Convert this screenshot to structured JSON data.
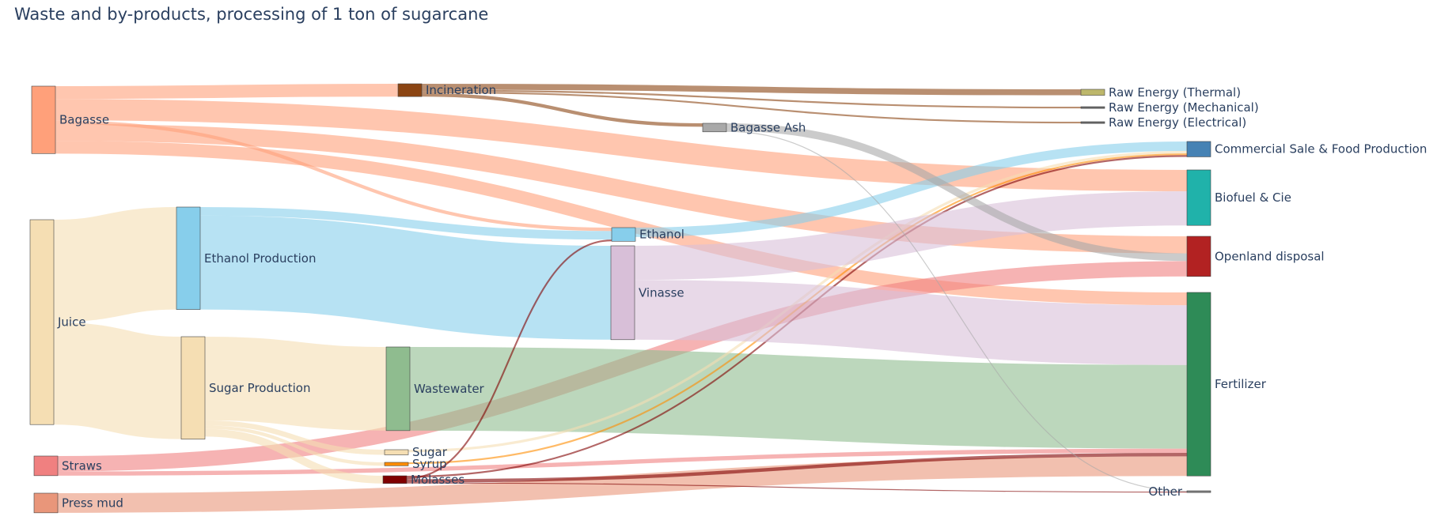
{
  "chart_data": {
    "type": "sankey",
    "title": "Waste and by-products, processing of 1 ton of sugarcane",
    "nodes": [
      {
        "id": "bagasse",
        "label": "Bagasse",
        "color": "#FFA07A"
      },
      {
        "id": "juice",
        "label": "Juice",
        "color": "#F5DEB3"
      },
      {
        "id": "straws",
        "label": "Straws",
        "color": "#F08080"
      },
      {
        "id": "pressmud",
        "label": "Press mud",
        "color": "#E9967A"
      },
      {
        "id": "ethprod",
        "label": "Ethanol Production",
        "color": "#87CEEB"
      },
      {
        "id": "sugprod",
        "label": "Sugar Production",
        "color": "#F5DEB3"
      },
      {
        "id": "incin",
        "label": "Incineration",
        "color": "#8B4513"
      },
      {
        "id": "wastewater",
        "label": "Wastewater",
        "color": "#8FBC8F"
      },
      {
        "id": "sugar",
        "label": "Sugar",
        "color": "#F5DEB3"
      },
      {
        "id": "syrup",
        "label": "Syrup",
        "color": "#FF8C00"
      },
      {
        "id": "molasses",
        "label": "Molasses",
        "color": "#800000"
      },
      {
        "id": "ethanol",
        "label": "Ethanol",
        "color": "#87CEEB"
      },
      {
        "id": "vinasse",
        "label": "Vinasse",
        "color": "#D8BFD8"
      },
      {
        "id": "ash",
        "label": "Bagasse Ash",
        "color": "#A9A9A9"
      },
      {
        "id": "rthermal",
        "label": "Raw Energy (Thermal)",
        "color": "#BDB76B"
      },
      {
        "id": "rmech",
        "label": "Raw Energy (Mechanical)",
        "color": "#696969"
      },
      {
        "id": "relec",
        "label": "Raw Energy (Electrical)",
        "color": "#696969"
      },
      {
        "id": "commercial",
        "label": "Commercial Sale & Food Production",
        "color": "#4682B4"
      },
      {
        "id": "biofuel",
        "label": "Biofuel & Cie",
        "color": "#20B2AA"
      },
      {
        "id": "openland",
        "label": "Openland disposal",
        "color": "#B22222"
      },
      {
        "id": "fertilizer",
        "label": "Fertilizer",
        "color": "#2E8B57"
      },
      {
        "id": "other",
        "label": "Other",
        "color": "#808080"
      }
    ],
    "links": [
      {
        "source": "bagasse",
        "target": "incin",
        "value": 15,
        "color": "#FFA07A"
      },
      {
        "source": "bagasse",
        "target": "biofuel",
        "value": 25,
        "color": "#FFA07A"
      },
      {
        "source": "bagasse",
        "target": "openland",
        "value": 20,
        "color": "#FFA07A"
      },
      {
        "source": "bagasse",
        "target": "fertilizer",
        "value": 15,
        "color": "#FFA07A"
      },
      {
        "source": "bagasse",
        "target": "ethanol",
        "value": 4,
        "color": "#FFA07A"
      },
      {
        "source": "juice",
        "target": "ethprod",
        "value": 120,
        "color": "#F5DEB3"
      },
      {
        "source": "juice",
        "target": "sugprod",
        "value": 120,
        "color": "#F5DEB3"
      },
      {
        "source": "straws",
        "target": "openland",
        "value": 18,
        "color": "#F08080"
      },
      {
        "source": "straws",
        "target": "fertilizer",
        "value": 5,
        "color": "#F08080"
      },
      {
        "source": "pressmud",
        "target": "fertilizer",
        "value": 23,
        "color": "#E9967A"
      },
      {
        "source": "ethprod",
        "target": "ethanol",
        "value": 10,
        "color": "#87CEEB"
      },
      {
        "source": "ethprod",
        "target": "vinasse",
        "value": 110,
        "color": "#87CEEB"
      },
      {
        "source": "sugprod",
        "target": "wastewater",
        "value": 98,
        "color": "#F5DEB3"
      },
      {
        "source": "sugprod",
        "target": "sugar",
        "value": 6,
        "color": "#F5DEB3"
      },
      {
        "source": "sugprod",
        "target": "syrup",
        "value": 4,
        "color": "#F5DEB3"
      },
      {
        "source": "sugprod",
        "target": "molasses",
        "value": 9,
        "color": "#F5DEB3"
      },
      {
        "source": "incin",
        "target": "rthermal",
        "value": 7,
        "color": "#8B4513"
      },
      {
        "source": "incin",
        "target": "rmech",
        "value": 2,
        "color": "#8B4513"
      },
      {
        "source": "incin",
        "target": "relec",
        "value": 2,
        "color": "#8B4513"
      },
      {
        "source": "incin",
        "target": "ash",
        "value": 4,
        "color": "#8B4513"
      },
      {
        "source": "wastewater",
        "target": "fertilizer",
        "value": 98,
        "color": "#8FBC8F"
      },
      {
        "source": "sugar",
        "target": "commercial",
        "value": 3,
        "color": "#F5DEB3"
      },
      {
        "source": "syrup",
        "target": "commercial",
        "value": 2,
        "color": "#FF8C00"
      },
      {
        "source": "molasses",
        "target": "ethanol",
        "value": 2,
        "color": "#800000"
      },
      {
        "source": "molasses",
        "target": "commercial",
        "value": 2,
        "color": "#800000"
      },
      {
        "source": "molasses",
        "target": "fertilizer",
        "value": 4,
        "color": "#800000"
      },
      {
        "source": "molasses",
        "target": "other",
        "value": 1,
        "color": "#800000"
      },
      {
        "source": "ethanol",
        "target": "commercial",
        "value": 11,
        "color": "#87CEEB"
      },
      {
        "source": "vinasse",
        "target": "biofuel",
        "value": 40,
        "color": "#D8BFD8"
      },
      {
        "source": "vinasse",
        "target": "fertilizer",
        "value": 70,
        "color": "#D8BFD8"
      },
      {
        "source": "ash",
        "target": "openland",
        "value": 9,
        "color": "#A9A9A9"
      },
      {
        "source": "ash",
        "target": "other",
        "value": 1,
        "color": "#A9A9A9"
      }
    ]
  }
}
